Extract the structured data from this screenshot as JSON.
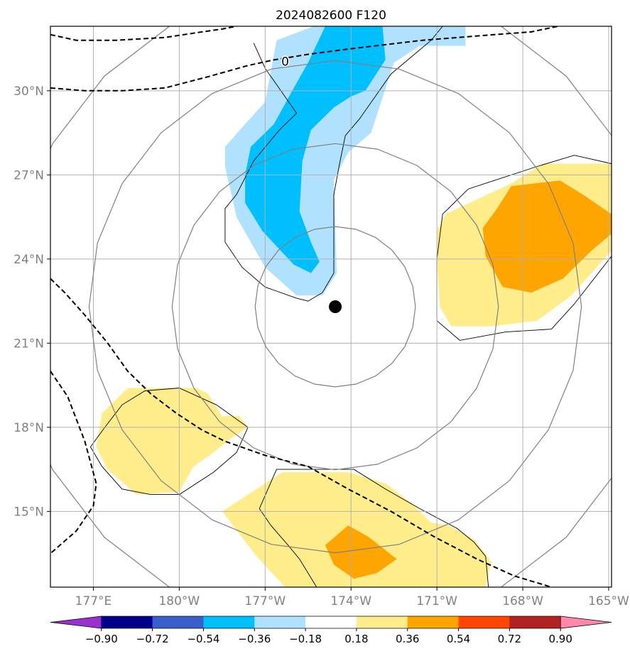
{
  "chart_data": {
    "type": "map-contour",
    "title": "2024082600 F120",
    "x_ticks": [
      {
        "lon": 177,
        "label": "177°E"
      },
      {
        "lon": 180,
        "label": "180°W"
      },
      {
        "lon": 183,
        "label": "177°W"
      },
      {
        "lon": 186,
        "label": "174°W"
      },
      {
        "lon": 189,
        "label": "171°W"
      },
      {
        "lon": 192,
        "label": "168°W"
      },
      {
        "lon": 195,
        "label": "165°W"
      }
    ],
    "y_ticks": [
      {
        "lat": 30,
        "label": "30°N"
      },
      {
        "lat": 27,
        "label": "27°N"
      },
      {
        "lat": 24,
        "label": "24°N"
      },
      {
        "lat": 21,
        "label": "21°N"
      },
      {
        "lat": 18,
        "label": "18°N"
      },
      {
        "lat": 15,
        "label": "15°N"
      }
    ],
    "xlim": [
      175.5,
      195.1
    ],
    "ylim": [
      12.3,
      32.3
    ],
    "grid": true,
    "center": {
      "lon": 185.45,
      "lat": 22.3
    },
    "range_rings_deg": [
      2.8,
      5.7,
      8.6,
      11.4
    ],
    "zero_contour_label": "0",
    "colorbar": {
      "levels": [
        "−0.90",
        "−0.72",
        "−0.54",
        "−0.36",
        "−0.18",
        "0.18",
        "0.36",
        "0.54",
        "0.72",
        "0.90"
      ],
      "colors": [
        "#9932cc",
        "#00008b",
        "#3a5fcd",
        "#00bfff",
        "#b0e2ff",
        "#ffffff",
        "#ffec8b",
        "#ffa500",
        "#ff4500",
        "#b22222",
        "#ff88aa"
      ]
    },
    "filled_regions": [
      {
        "name": "negative-outer",
        "color": "#b0e2ff",
        "points": [
          [
            183.4,
            31.8
          ],
          [
            184.7,
            32.3
          ],
          [
            190.0,
            32.3
          ],
          [
            190.0,
            31.6
          ],
          [
            188.4,
            31.6
          ],
          [
            187.5,
            31.0
          ],
          [
            186.7,
            28.5
          ],
          [
            185.9,
            27.8
          ],
          [
            185.4,
            26.8
          ],
          [
            185.5,
            23.5
          ],
          [
            185.0,
            22.7
          ],
          [
            184.1,
            22.7
          ],
          [
            183.0,
            23.7
          ],
          [
            182.0,
            25.5
          ],
          [
            181.6,
            27.3
          ],
          [
            181.6,
            28.0
          ],
          [
            182.2,
            28.7
          ],
          [
            183.0,
            29.6
          ]
        ]
      },
      {
        "name": "negative-inner",
        "color": "#00bfff",
        "points": [
          [
            185.1,
            32.3
          ],
          [
            187.1,
            32.3
          ],
          [
            187.2,
            31.1
          ],
          [
            186.5,
            30.0
          ],
          [
            186.0,
            29.8
          ],
          [
            185.4,
            29.4
          ],
          [
            184.6,
            28.6
          ],
          [
            184.3,
            27.5
          ],
          [
            184.2,
            25.7
          ],
          [
            184.6,
            24.6
          ],
          [
            184.9,
            23.9
          ],
          [
            184.6,
            23.5
          ],
          [
            184.0,
            23.8
          ],
          [
            182.9,
            25.0
          ],
          [
            182.3,
            26.0
          ],
          [
            182.3,
            27.0
          ],
          [
            182.5,
            28.0
          ],
          [
            183.3,
            28.8
          ],
          [
            184.0,
            30.1
          ],
          [
            184.5,
            31.0
          ]
        ]
      },
      {
        "name": "positive-east-outer",
        "color": "#ffec8b",
        "points": [
          [
            191.6,
            26.7
          ],
          [
            192.7,
            27.4
          ],
          [
            195.1,
            27.4
          ],
          [
            195.1,
            24.3
          ],
          [
            194.4,
            23.5
          ],
          [
            193.7,
            22.7
          ],
          [
            192.5,
            21.8
          ],
          [
            190.9,
            21.6
          ],
          [
            189.5,
            21.6
          ],
          [
            189.1,
            22.3
          ],
          [
            189.0,
            24.0
          ],
          [
            189.0,
            25.0
          ],
          [
            189.3,
            25.6
          ]
        ]
      },
      {
        "name": "positive-east-inner",
        "color": "#ffa500",
        "points": [
          [
            193.3,
            26.8
          ],
          [
            194.1,
            26.3
          ],
          [
            195.1,
            25.6
          ],
          [
            195.1,
            24.9
          ],
          [
            194.4,
            24.3
          ],
          [
            193.4,
            23.3
          ],
          [
            192.3,
            22.8
          ],
          [
            191.3,
            23.0
          ],
          [
            190.7,
            24.1
          ],
          [
            190.6,
            25.1
          ],
          [
            191.1,
            25.8
          ],
          [
            191.6,
            26.6
          ]
        ]
      },
      {
        "name": "positive-sw",
        "color": "#ffec8b",
        "points": [
          [
            177.3,
            18.5
          ],
          [
            178.2,
            19.4
          ],
          [
            180.6,
            19.4
          ],
          [
            181.0,
            19.2
          ],
          [
            181.5,
            18.4
          ],
          [
            182.1,
            18.4
          ],
          [
            182.4,
            18.0
          ],
          [
            181.8,
            17.6
          ],
          [
            181.2,
            17.1
          ],
          [
            180.5,
            16.6
          ],
          [
            180.0,
            15.7
          ],
          [
            178.5,
            15.6
          ],
          [
            177.5,
            16.5
          ],
          [
            177.1,
            17.3
          ]
        ]
      },
      {
        "name": "positive-south-outer",
        "color": "#ffec8b",
        "points": [
          [
            183.6,
            16.4
          ],
          [
            185.9,
            16.4
          ],
          [
            187.2,
            16.0
          ],
          [
            188.1,
            15.3
          ],
          [
            188.8,
            14.6
          ],
          [
            189.4,
            14.5
          ],
          [
            190.3,
            14.0
          ],
          [
            190.9,
            13.2
          ],
          [
            190.7,
            12.3
          ],
          [
            183.7,
            12.3
          ],
          [
            182.7,
            13.4
          ],
          [
            182.1,
            14.2
          ],
          [
            181.5,
            15.0
          ]
        ]
      },
      {
        "name": "positive-south-inner",
        "color": "#ffa500",
        "points": [
          [
            185.1,
            13.8
          ],
          [
            185.9,
            14.5
          ],
          [
            186.6,
            14.1
          ],
          [
            187.6,
            13.3
          ],
          [
            186.9,
            12.8
          ],
          [
            186.1,
            12.6
          ],
          [
            185.4,
            13.1
          ]
        ]
      }
    ],
    "outline_contours": [
      {
        "name": "outline-negative",
        "points": [
          [
            182.6,
            31.7
          ],
          [
            183.0,
            30.8
          ],
          [
            184.1,
            29.2
          ],
          [
            183.5,
            28.6
          ],
          [
            182.6,
            27.5
          ],
          [
            182.0,
            26.3
          ],
          [
            181.6,
            25.8
          ],
          [
            181.6,
            24.6
          ],
          [
            182.2,
            23.7
          ],
          [
            183.0,
            23.0
          ],
          [
            184.1,
            22.6
          ],
          [
            184.5,
            22.5
          ],
          [
            185.0,
            22.8
          ],
          [
            185.4,
            23.5
          ],
          [
            185.4,
            25.0
          ],
          [
            185.4,
            26.3
          ],
          [
            185.6,
            27.4
          ],
          [
            185.8,
            28.4
          ],
          [
            186.3,
            29.0
          ],
          [
            187.4,
            30.6
          ],
          [
            188.8,
            31.8
          ],
          [
            189.2,
            32.3
          ]
        ]
      },
      {
        "name": "outline-east",
        "points": [
          [
            189.0,
            21.8
          ],
          [
            189.8,
            21.1
          ],
          [
            191.4,
            21.4
          ],
          [
            193.0,
            21.5
          ],
          [
            193.8,
            22.4
          ],
          [
            195.1,
            24.1
          ]
        ]
      },
      {
        "name": "outline-east-2",
        "points": [
          [
            189.0,
            21.8
          ],
          [
            189.0,
            24.0
          ],
          [
            189.2,
            25.6
          ],
          [
            190.1,
            26.5
          ],
          [
            192.5,
            27.3
          ],
          [
            193.8,
            27.7
          ],
          [
            195.1,
            27.4
          ]
        ]
      },
      {
        "name": "outline-sw",
        "points": [
          [
            176.9,
            17.3
          ],
          [
            177.3,
            16.6
          ],
          [
            178.0,
            15.8
          ],
          [
            179.0,
            15.6
          ],
          [
            180.0,
            15.6
          ],
          [
            181.2,
            16.4
          ],
          [
            182.0,
            17.1
          ],
          [
            182.4,
            18.0
          ],
          [
            181.3,
            18.8
          ],
          [
            180.0,
            19.4
          ],
          [
            178.8,
            19.3
          ],
          [
            178.0,
            18.8
          ],
          [
            177.4,
            18.0
          ],
          [
            176.9,
            17.3
          ]
        ]
      },
      {
        "name": "outline-south",
        "points": [
          [
            182.8,
            15.1
          ],
          [
            183.4,
            16.5
          ],
          [
            184.3,
            16.5
          ],
          [
            186.1,
            16.5
          ],
          [
            187.2,
            15.8
          ],
          [
            188.4,
            15.1
          ],
          [
            189.7,
            14.4
          ],
          [
            190.3,
            13.9
          ],
          [
            190.7,
            13.4
          ],
          [
            190.8,
            12.3
          ]
        ]
      },
      {
        "name": "outline-south-2",
        "points": [
          [
            182.8,
            15.1
          ],
          [
            183.2,
            14.5
          ],
          [
            183.8,
            13.8
          ],
          [
            184.2,
            13.3
          ],
          [
            184.8,
            12.3
          ]
        ]
      }
    ],
    "dashed_lines": [
      {
        "name": "dashed-top-1",
        "points": [
          [
            175.5,
            32.0
          ],
          [
            176.4,
            31.8
          ],
          [
            177.8,
            31.8
          ],
          [
            179.5,
            31.9
          ],
          [
            180.8,
            32.1
          ],
          [
            181.5,
            32.2
          ],
          [
            182.0,
            32.3
          ]
        ]
      },
      {
        "name": "dashed-top-2",
        "points": [
          [
            175.5,
            30.1
          ],
          [
            176.7,
            30.0
          ],
          [
            178.0,
            30.0
          ],
          [
            179.5,
            30.1
          ],
          [
            181.0,
            30.5
          ],
          [
            182.4,
            30.9
          ],
          [
            183.3,
            31.1
          ],
          [
            184.5,
            31.3
          ],
          [
            186.0,
            31.5
          ],
          [
            188.5,
            31.8
          ],
          [
            191.0,
            32.0
          ],
          [
            192.3,
            32.1
          ],
          [
            193.7,
            32.4
          ]
        ]
      },
      {
        "name": "dashed-diagonal",
        "points": [
          [
            175.5,
            23.3
          ],
          [
            176.0,
            22.8
          ],
          [
            176.7,
            22.0
          ],
          [
            177.5,
            21.0
          ],
          [
            178.2,
            20.0
          ],
          [
            179.0,
            19.2
          ],
          [
            179.9,
            18.5
          ],
          [
            180.8,
            17.9
          ],
          [
            181.6,
            17.5
          ],
          [
            183.0,
            17.0
          ],
          [
            184.5,
            16.6
          ],
          [
            185.9,
            15.8
          ],
          [
            187.4,
            15.0
          ],
          [
            188.9,
            14.1
          ],
          [
            190.4,
            13.3
          ],
          [
            191.7,
            12.7
          ],
          [
            193.0,
            12.3
          ]
        ]
      },
      {
        "name": "dashed-left",
        "points": [
          [
            175.5,
            20.0
          ],
          [
            176.1,
            19.1
          ],
          [
            176.7,
            17.5
          ],
          [
            177.1,
            16.0
          ],
          [
            177.0,
            15.2
          ],
          [
            176.4,
            14.3
          ],
          [
            175.5,
            13.5
          ]
        ]
      }
    ]
  }
}
